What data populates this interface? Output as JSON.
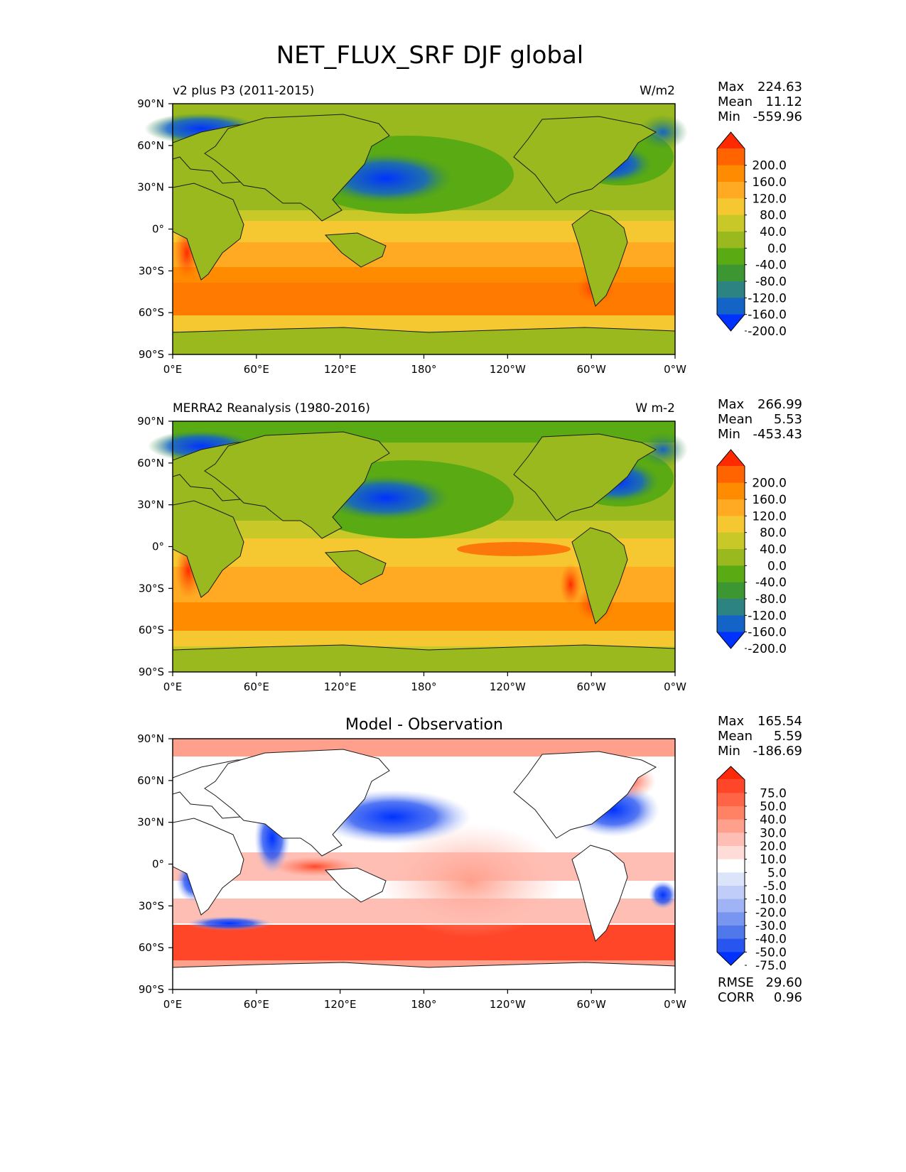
{
  "title": "NET_FLUX_SRF DJF global",
  "x_ticks": [
    "0°E",
    "60°E",
    "120°E",
    "180°",
    "120°W",
    "60°W",
    "0°W"
  ],
  "y_ticks": [
    "90°N",
    "60°N",
    "30°N",
    "0°",
    "30°S",
    "60°S",
    "90°S"
  ],
  "panels": [
    {
      "left_title": "v2 plus P3 (2011-2015)",
      "center_title": "",
      "units": "W/m2",
      "stats": [
        {
          "label": "Max",
          "value": "224.63"
        },
        {
          "label": "Mean",
          "value": "11.12"
        },
        {
          "label": "Min",
          "value": "-559.96"
        }
      ],
      "colorbar": {
        "labels": [
          "200.0",
          "160.0",
          "120.0",
          "80.0",
          "40.0",
          "0.0",
          "-40.0",
          "-80.0",
          "-120.0",
          "-160.0",
          "-200.0"
        ],
        "colors": [
          "#ff2a00",
          "#ff6400",
          "#ff8c00",
          "#ffaa22",
          "#f5c832",
          "#c8c828",
          "#9ab91e",
          "#5aaa14",
          "#3c9632",
          "#2d8282",
          "#1464c8",
          "#0032ff"
        ]
      }
    },
    {
      "left_title": "MERRA2 Reanalysis (1980-2016)",
      "center_title": "",
      "units": "W m-2",
      "stats": [
        {
          "label": "Max",
          "value": "266.99"
        },
        {
          "label": "Mean",
          "value": "5.53"
        },
        {
          "label": "Min",
          "value": "-453.43"
        }
      ],
      "colorbar": {
        "labels": [
          "200.0",
          "160.0",
          "120.0",
          "80.0",
          "40.0",
          "0.0",
          "-40.0",
          "-80.0",
          "-120.0",
          "-160.0",
          "-200.0"
        ],
        "colors": [
          "#ff2a00",
          "#ff6400",
          "#ff8c00",
          "#ffaa22",
          "#f5c832",
          "#c8c828",
          "#9ab91e",
          "#5aaa14",
          "#3c9632",
          "#2d8282",
          "#1464c8",
          "#0032ff"
        ]
      }
    },
    {
      "left_title": "",
      "center_title": "Model - Observation",
      "units": "",
      "stats": [
        {
          "label": "Max",
          "value": "165.54"
        },
        {
          "label": "Mean",
          "value": "5.59"
        },
        {
          "label": "Min",
          "value": "-186.69"
        }
      ],
      "extra_stats": [
        {
          "label": "RMSE",
          "value": "29.60"
        },
        {
          "label": "CORR",
          "value": "0.96"
        }
      ],
      "colorbar": {
        "labels": [
          "75.0",
          "50.0",
          "40.0",
          "30.0",
          "20.0",
          "10.0",
          "5.0",
          "-5.0",
          "-10.0",
          "-20.0",
          "-30.0",
          "-40.0",
          "-50.0",
          "-75.0"
        ],
        "colors": [
          "#ff2a0a",
          "#ff4628",
          "#ff6446",
          "#ff8264",
          "#ffa08c",
          "#ffbeb4",
          "#ffdcd8",
          "#ffffff",
          "#dce4fa",
          "#c0cdf8",
          "#a0b4f5",
          "#7896f0",
          "#5078ea",
          "#2855f0",
          "#0032ff"
        ]
      }
    }
  ]
}
